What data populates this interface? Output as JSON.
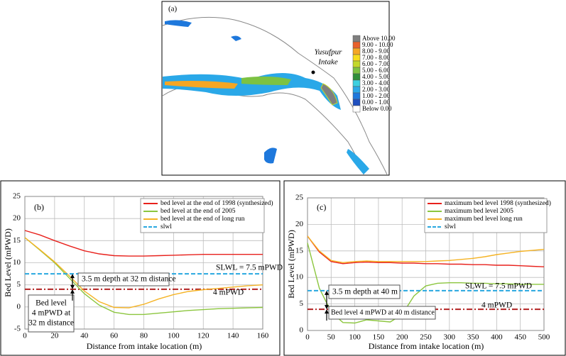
{
  "map": {
    "panel_label": "(a)",
    "site_label": [
      "Yusufpur",
      "Intake"
    ],
    "legend": [
      {
        "label": "Above 10.00",
        "color": "#7f7f7f"
      },
      {
        "label": "9.00 - 10.00",
        "color": "#e8602c"
      },
      {
        "label": "8.00 - 9.00",
        "color": "#f5a623"
      },
      {
        "label": "7.00 - 8.00",
        "color": "#f7dc1b"
      },
      {
        "label": "6.00 - 7.00",
        "color": "#c3d82a"
      },
      {
        "label": "5.00 - 6.00",
        "color": "#7cc242"
      },
      {
        "label": "4.00 - 5.00",
        "color": "#2f8f3a"
      },
      {
        "label": "3.00 - 4.00",
        "color": "#3cd0e0"
      },
      {
        "label": "2.00 - 3.00",
        "color": "#2aa8e8"
      },
      {
        "label": "1.00 - 2.00",
        "color": "#1e78dc"
      },
      {
        "label": "0.00 - 1.00",
        "color": "#1f4fbf"
      },
      {
        "label": "Below 0.00",
        "color": "#ffffff"
      }
    ]
  },
  "chart_data": [
    {
      "type": "line",
      "panel_label": "(b)",
      "xlabel": "Distance from intake location (m)",
      "ylabel": "Bed Level (mPWD)",
      "xlim": [
        0,
        160
      ],
      "ylim": [
        -5,
        25
      ],
      "xticks": [
        0,
        20,
        40,
        60,
        80,
        100,
        120,
        140,
        160
      ],
      "yticks": [
        -5,
        0,
        5,
        10,
        15,
        20,
        25
      ],
      "grid": true,
      "x": [
        0,
        10,
        20,
        30,
        40,
        50,
        60,
        70,
        80,
        90,
        100,
        110,
        120,
        130,
        140,
        150,
        160
      ],
      "series": [
        {
          "name": "bed level at the end of 1998 (synthesized)",
          "color": "#e8211c",
          "style": "solid",
          "values": [
            17.3,
            16.3,
            15.0,
            13.8,
            12.7,
            12.0,
            11.6,
            11.5,
            11.5,
            11.6,
            11.7,
            11.8,
            11.9,
            11.9,
            11.9,
            11.9,
            11.9
          ]
        },
        {
          "name": "bed level at the end of 2005",
          "color": "#8cc63f",
          "style": "solid",
          "values": [
            15.7,
            12.9,
            10.0,
            6.5,
            3.0,
            0.4,
            -1.2,
            -1.7,
            -1.7,
            -1.4,
            -1.1,
            -0.8,
            -0.6,
            -0.4,
            -0.3,
            -0.2,
            -0.1
          ]
        },
        {
          "name": "bed level at the end of long run",
          "color": "#f5b324",
          "style": "solid",
          "values": [
            15.7,
            13.0,
            10.2,
            7.0,
            3.6,
            1.2,
            -0.1,
            -0.2,
            0.6,
            1.8,
            2.8,
            3.5,
            3.9,
            4.2,
            4.5,
            4.8,
            5.0
          ]
        },
        {
          "name": "slwl",
          "color": "#29a8e0",
          "style": "dashed",
          "values": [
            7.5,
            7.5,
            7.5,
            7.5,
            7.5,
            7.5,
            7.5,
            7.5,
            7.5,
            7.5,
            7.5,
            7.5,
            7.5,
            7.5,
            7.5,
            7.5,
            7.5
          ]
        }
      ],
      "hlines": [
        {
          "value": 4,
          "color": "#b22222"
        }
      ],
      "annotations": [
        [
          "SLWL = 7.5 mPWD"
        ],
        [
          "4 mPWD"
        ],
        [
          "3.5 m depth at 32 m distance"
        ],
        [
          "Bed level",
          "4 mPWD at",
          "32 m distance"
        ]
      ]
    },
    {
      "type": "line",
      "panel_label": "(c)",
      "xlabel": "Distance from intake location (m)",
      "ylabel": "Bed Level (mPWD)",
      "xlim": [
        0,
        500
      ],
      "ylim": [
        0,
        25
      ],
      "xticks": [
        0,
        50,
        100,
        150,
        200,
        250,
        300,
        350,
        400,
        450,
        500
      ],
      "yticks": [
        0,
        5,
        10,
        15,
        20,
        25
      ],
      "grid": true,
      "x": [
        0,
        25,
        50,
        75,
        100,
        125,
        150,
        175,
        200,
        225,
        250,
        275,
        300,
        325,
        350,
        375,
        400,
        425,
        450,
        475,
        500
      ],
      "series": [
        {
          "name": "maximum bed level 1998 (synthesized)",
          "color": "#e8211c",
          "style": "solid",
          "values": [
            17.8,
            14.8,
            13.0,
            12.6,
            12.8,
            12.9,
            12.8,
            12.8,
            12.7,
            12.7,
            12.6,
            12.6,
            12.5,
            12.5,
            12.4,
            12.4,
            12.3,
            12.3,
            12.2,
            12.1,
            12.0
          ]
        },
        {
          "name": "maximum bed level 2005",
          "color": "#8cc63f",
          "style": "solid",
          "values": [
            16.5,
            8.0,
            3.5,
            1.5,
            1.4,
            2.0,
            1.8,
            1.6,
            3.0,
            6.5,
            8.4,
            8.9,
            9.0,
            9.0,
            8.9,
            8.9,
            8.8,
            8.8,
            8.7,
            8.7,
            8.7
          ]
        },
        {
          "name": "maximum bed level long run",
          "color": "#f5b324",
          "style": "solid",
          "values": [
            17.8,
            15.0,
            13.2,
            12.8,
            13.0,
            13.1,
            13.0,
            13.0,
            13.0,
            13.0,
            13.0,
            13.1,
            13.2,
            13.4,
            13.6,
            13.9,
            14.3,
            14.6,
            14.9,
            15.1,
            15.3
          ]
        },
        {
          "name": "slwl",
          "color": "#29a8e0",
          "style": "dashed",
          "values": [
            7.5,
            7.5,
            7.5,
            7.5,
            7.5,
            7.5,
            7.5,
            7.5,
            7.5,
            7.5,
            7.5,
            7.5,
            7.5,
            7.5,
            7.5,
            7.5,
            7.5,
            7.5,
            7.5,
            7.5,
            7.5
          ]
        }
      ],
      "hlines": [
        {
          "value": 4,
          "color": "#b22222"
        }
      ],
      "annotations": [
        [
          "SLWL = 7.5 mPWD"
        ],
        [
          "4 mPWD"
        ],
        [
          "3.5 m depth at 40 m"
        ],
        [
          "Bed level 4 mPWD at 40 m distance"
        ]
      ]
    }
  ]
}
